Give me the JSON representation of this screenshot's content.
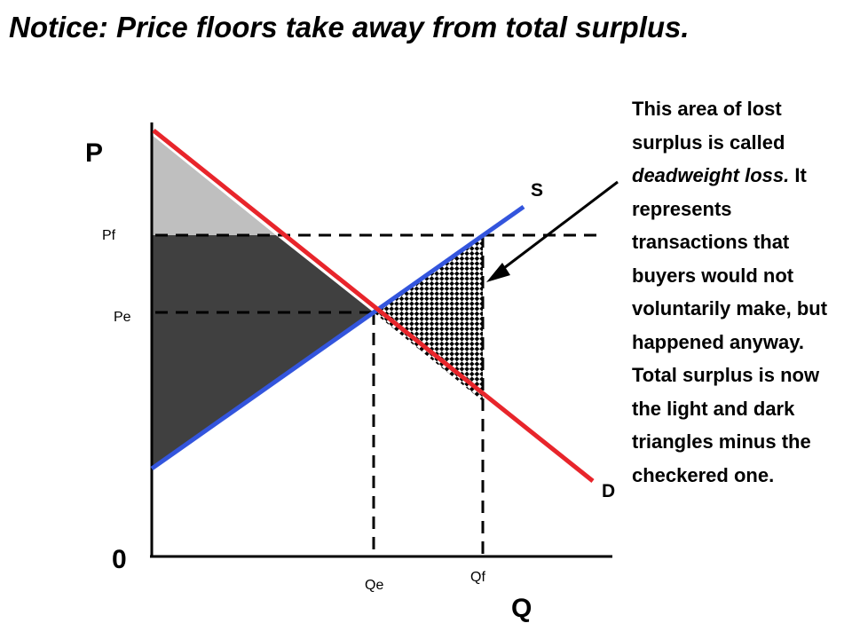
{
  "title": "Notice: Price floors take away from total surplus.",
  "axes": {
    "y_label": "P",
    "x_label": "Q",
    "origin_label": "0"
  },
  "curves": {
    "supply_label": "S",
    "demand_label": "D",
    "supply_color": "#3355dd",
    "demand_color": "#e8252b"
  },
  "price_levels": {
    "floor_label": "Pf",
    "equilibrium_label": "Pe"
  },
  "quantity_levels": {
    "equilibrium_label": "Qe",
    "floor_label": "Qf"
  },
  "areas": {
    "light_triangle_color": "#bfbfbf",
    "dark_region_color": "#404040",
    "deadweight_pattern": "checkered"
  },
  "explanation": {
    "part1": "This area of lost surplus is called ",
    "italic": "deadweight loss.",
    "part2": " It represents transactions that buyers would not voluntarily make, but happened anyway.  Total surplus is now the light and dark triangles minus the checkered one."
  }
}
